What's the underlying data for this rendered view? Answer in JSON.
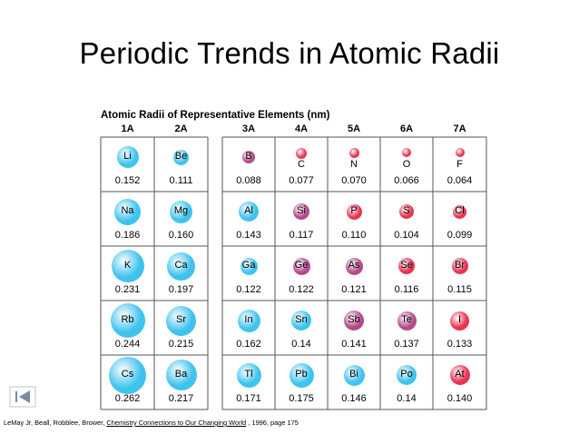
{
  "slide_title": "Periodic Trends in Atomic Radii",
  "figure": {
    "title": "Atomic Radii of Representative Elements (nm)",
    "groups": [
      "1A",
      "2A",
      "3A",
      "4A",
      "5A",
      "6A",
      "7A"
    ],
    "rows": [
      [
        {
          "s": "Li",
          "r": "0.152"
        },
        {
          "s": "Be",
          "r": "0.111"
        },
        {
          "s": "B",
          "r": "0.088"
        },
        {
          "s": "C",
          "r": "0.077"
        },
        {
          "s": "N",
          "r": "0.070"
        },
        {
          "s": "O",
          "r": "0.066"
        },
        {
          "s": "F",
          "r": "0.064"
        }
      ],
      [
        {
          "s": "Na",
          "r": "0.186"
        },
        {
          "s": "Mg",
          "r": "0.160"
        },
        {
          "s": "Al",
          "r": "0.143"
        },
        {
          "s": "Si",
          "r": "0.117"
        },
        {
          "s": "P",
          "r": "0.110"
        },
        {
          "s": "S",
          "r": "0.104"
        },
        {
          "s": "Cl",
          "r": "0.099"
        }
      ],
      [
        {
          "s": "K",
          "r": "0.231"
        },
        {
          "s": "Ca",
          "r": "0.197"
        },
        {
          "s": "Ga",
          "r": "0.122"
        },
        {
          "s": "Ge",
          "r": "0.122"
        },
        {
          "s": "As",
          "r": "0.121"
        },
        {
          "s": "Se",
          "r": "0.116"
        },
        {
          "s": "Br",
          "r": "0.115"
        }
      ],
      [
        {
          "s": "Rb",
          "r": "0.244"
        },
        {
          "s": "Sr",
          "r": "0.215"
        },
        {
          "s": "In",
          "r": "0.162"
        },
        {
          "s": "Sn",
          "r": "0.14"
        },
        {
          "s": "Sb",
          "r": "0.141"
        },
        {
          "s": "Te",
          "r": "0.137"
        },
        {
          "s": "I",
          "r": "0.133"
        }
      ],
      [
        {
          "s": "Cs",
          "r": "0.262"
        },
        {
          "s": "Ba",
          "r": "0.217"
        },
        {
          "s": "Tl",
          "r": "0.171"
        },
        {
          "s": "Pb",
          "r": "0.175"
        },
        {
          "s": "Bi",
          "r": "0.146"
        },
        {
          "s": "Po",
          "r": "0.14"
        },
        {
          "s": "At",
          "r": "0.140"
        }
      ]
    ]
  },
  "citation": {
    "authors": "LeMay Jr, Beall, Robblee, Brower, ",
    "book": "Chemistry Connections to Our Changing World",
    "rest": " , 1996, page 175"
  },
  "colors": {
    "metal": "#3fc3ee",
    "metalloid": "#b34a8a",
    "nonmetal": "#e8344f"
  },
  "nav": {
    "icon": "previous-slide-icon"
  }
}
